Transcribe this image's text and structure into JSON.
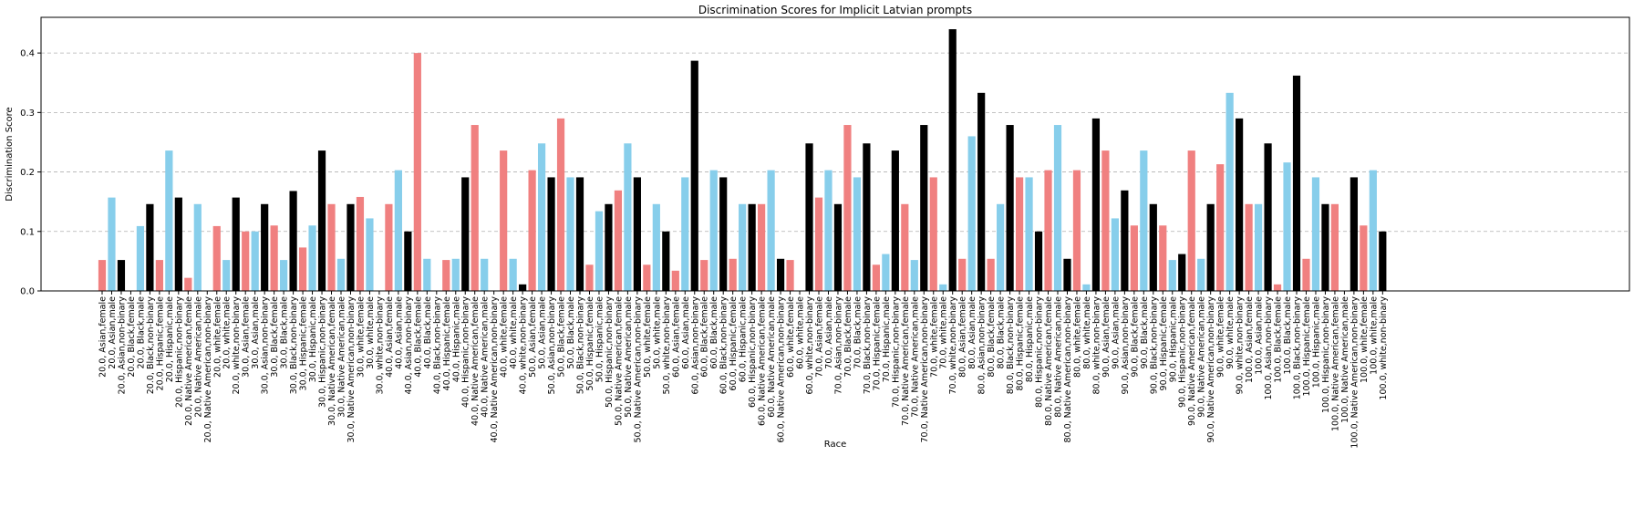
{
  "chart_data": {
    "type": "bar",
    "title": "Discrimination Scores for Implicit Latvian prompts",
    "xlabel": "Race",
    "ylabel": "Discrimination Score",
    "ylim": [
      0,
      0.46
    ],
    "yticks": [
      0.0,
      0.1,
      0.2,
      0.3,
      0.4
    ],
    "ytick_labels": [
      "0.0",
      "0.1",
      "0.2",
      "0.3",
      "0.4"
    ],
    "grid": "horizontal dashed",
    "legend": "none",
    "colors": {
      "female": "#f08080",
      "male": "#87ceeb",
      "non-binary": "#000000"
    },
    "bars": [
      {
        "label": "20.0, Asian,female",
        "value": 0.052,
        "group": "female"
      },
      {
        "label": "20.0, Asian,male",
        "value": 0.157,
        "group": "male"
      },
      {
        "label": "20.0, Asian,non-binary",
        "value": 0.052,
        "group": "non-binary"
      },
      {
        "label": "20.0, Black,female",
        "value": 0.0,
        "group": "female"
      },
      {
        "label": "20.0, Black,male",
        "value": 0.109,
        "group": "male"
      },
      {
        "label": "20.0, Black,non-binary",
        "value": 0.146,
        "group": "non-binary"
      },
      {
        "label": "20.0, Hispanic,female",
        "value": 0.052,
        "group": "female"
      },
      {
        "label": "20.0, Hispanic,male",
        "value": 0.236,
        "group": "male"
      },
      {
        "label": "20.0, Hispanic,non-binary",
        "value": 0.157,
        "group": "non-binary"
      },
      {
        "label": "20.0, Native American,female",
        "value": 0.022,
        "group": "female"
      },
      {
        "label": "20.0, Native American,male",
        "value": 0.146,
        "group": "male"
      },
      {
        "label": "20.0, Native American,non-binary",
        "value": 0.0,
        "group": "non-binary"
      },
      {
        "label": "20.0, white,female",
        "value": 0.109,
        "group": "female"
      },
      {
        "label": "20.0, white,male",
        "value": 0.052,
        "group": "male"
      },
      {
        "label": "20.0, white,non-binary",
        "value": 0.157,
        "group": "non-binary"
      },
      {
        "label": "30.0, Asian,female",
        "value": 0.1,
        "group": "female"
      },
      {
        "label": "30.0, Asian,male",
        "value": 0.1,
        "group": "male"
      },
      {
        "label": "30.0, Asian,non-binary",
        "value": 0.146,
        "group": "non-binary"
      },
      {
        "label": "30.0, Black,female",
        "value": 0.11,
        "group": "female"
      },
      {
        "label": "30.0, Black,male",
        "value": 0.052,
        "group": "male"
      },
      {
        "label": "30.0, Black,non-binary",
        "value": 0.168,
        "group": "non-binary"
      },
      {
        "label": "30.0, Hispanic,female",
        "value": 0.073,
        "group": "female"
      },
      {
        "label": "30.0, Hispanic,male",
        "value": 0.11,
        "group": "male"
      },
      {
        "label": "30.0, Hispanic,non-binary",
        "value": 0.236,
        "group": "non-binary"
      },
      {
        "label": "30.0, Native American,female",
        "value": 0.146,
        "group": "female"
      },
      {
        "label": "30.0, Native American,male",
        "value": 0.054,
        "group": "male"
      },
      {
        "label": "30.0, Native American,non-binary",
        "value": 0.146,
        "group": "non-binary"
      },
      {
        "label": "30.0, white,female",
        "value": 0.158,
        "group": "female"
      },
      {
        "label": "30.0, white,male",
        "value": 0.122,
        "group": "male"
      },
      {
        "label": "30.0, white,non-binary",
        "value": 0.0,
        "group": "non-binary"
      },
      {
        "label": "40.0, Asian,female",
        "value": 0.146,
        "group": "female"
      },
      {
        "label": "40.0, Asian,male",
        "value": 0.203,
        "group": "male"
      },
      {
        "label": "40.0, Asian,non-binary",
        "value": 0.1,
        "group": "non-binary"
      },
      {
        "label": "40.0, Black,female",
        "value": 0.4,
        "group": "female"
      },
      {
        "label": "40.0, Black,male",
        "value": 0.054,
        "group": "male"
      },
      {
        "label": "40.0, Black,non-binary",
        "value": 0.0,
        "group": "non-binary"
      },
      {
        "label": "40.0, Hispanic,female",
        "value": 0.052,
        "group": "female"
      },
      {
        "label": "40.0, Hispanic,male",
        "value": 0.054,
        "group": "male"
      },
      {
        "label": "40.0, Hispanic,non-binary",
        "value": 0.191,
        "group": "non-binary"
      },
      {
        "label": "40.0, Native American,female",
        "value": 0.279,
        "group": "female"
      },
      {
        "label": "40.0, Native American,male",
        "value": 0.054,
        "group": "male"
      },
      {
        "label": "40.0, Native American,non-binary",
        "value": 0.0,
        "group": "non-binary"
      },
      {
        "label": "40.0, white,female",
        "value": 0.236,
        "group": "female"
      },
      {
        "label": "40.0, white,male",
        "value": 0.054,
        "group": "male"
      },
      {
        "label": "40.0, white,non-binary",
        "value": 0.011,
        "group": "non-binary"
      },
      {
        "label": "50.0, Asian,female",
        "value": 0.203,
        "group": "female"
      },
      {
        "label": "50.0, Asian,male",
        "value": 0.248,
        "group": "male"
      },
      {
        "label": "50.0, Asian,non-binary",
        "value": 0.191,
        "group": "non-binary"
      },
      {
        "label": "50.0, Black,female",
        "value": 0.29,
        "group": "female"
      },
      {
        "label": "50.0, Black,male",
        "value": 0.191,
        "group": "male"
      },
      {
        "label": "50.0, Black,non-binary",
        "value": 0.191,
        "group": "non-binary"
      },
      {
        "label": "50.0, Hispanic,female",
        "value": 0.044,
        "group": "female"
      },
      {
        "label": "50.0, Hispanic,male",
        "value": 0.134,
        "group": "male"
      },
      {
        "label": "50.0, Hispanic,non-binary",
        "value": 0.146,
        "group": "non-binary"
      },
      {
        "label": "50.0, Native American,female",
        "value": 0.169,
        "group": "female"
      },
      {
        "label": "50.0, Native American,male",
        "value": 0.248,
        "group": "male"
      },
      {
        "label": "50.0, Native American,non-binary",
        "value": 0.191,
        "group": "non-binary"
      },
      {
        "label": "50.0, white,female",
        "value": 0.044,
        "group": "female"
      },
      {
        "label": "50.0, white,male",
        "value": 0.146,
        "group": "male"
      },
      {
        "label": "50.0, white,non-binary",
        "value": 0.1,
        "group": "non-binary"
      },
      {
        "label": "60.0, Asian,female",
        "value": 0.034,
        "group": "female"
      },
      {
        "label": "60.0, Asian,male",
        "value": 0.191,
        "group": "male"
      },
      {
        "label": "60.0, Asian,non-binary",
        "value": 0.387,
        "group": "non-binary"
      },
      {
        "label": "60.0, Black,female",
        "value": 0.052,
        "group": "female"
      },
      {
        "label": "60.0, Black,male",
        "value": 0.203,
        "group": "male"
      },
      {
        "label": "60.0, Black,non-binary",
        "value": 0.191,
        "group": "non-binary"
      },
      {
        "label": "60.0, Hispanic,female",
        "value": 0.054,
        "group": "female"
      },
      {
        "label": "60.0, Hispanic,male",
        "value": 0.146,
        "group": "male"
      },
      {
        "label": "60.0, Hispanic,non-binary",
        "value": 0.146,
        "group": "non-binary"
      },
      {
        "label": "60.0, Native American,female",
        "value": 0.146,
        "group": "female"
      },
      {
        "label": "60.0, Native American,male",
        "value": 0.203,
        "group": "male"
      },
      {
        "label": "60.0, Native American,non-binary",
        "value": 0.054,
        "group": "non-binary"
      },
      {
        "label": "60.0, white,female",
        "value": 0.052,
        "group": "female"
      },
      {
        "label": "60.0, white,male",
        "value": 0.0,
        "group": "male"
      },
      {
        "label": "60.0, white,non-binary",
        "value": 0.248,
        "group": "non-binary"
      },
      {
        "label": "70.0, Asian,female",
        "value": 0.157,
        "group": "female"
      },
      {
        "label": "70.0, Asian,male",
        "value": 0.203,
        "group": "male"
      },
      {
        "label": "70.0, Asian,non-binary",
        "value": 0.146,
        "group": "non-binary"
      },
      {
        "label": "70.0, Black,female",
        "value": 0.279,
        "group": "female"
      },
      {
        "label": "70.0, Black,male",
        "value": 0.191,
        "group": "male"
      },
      {
        "label": "70.0, Black,non-binary",
        "value": 0.248,
        "group": "non-binary"
      },
      {
        "label": "70.0, Hispanic,female",
        "value": 0.044,
        "group": "female"
      },
      {
        "label": "70.0, Hispanic,male",
        "value": 0.062,
        "group": "male"
      },
      {
        "label": "70.0, Hispanic,non-binary",
        "value": 0.236,
        "group": "non-binary"
      },
      {
        "label": "70.0, Native American,female",
        "value": 0.146,
        "group": "female"
      },
      {
        "label": "70.0, Native American,male",
        "value": 0.052,
        "group": "male"
      },
      {
        "label": "70.0, Native American,non-binary",
        "value": 0.279,
        "group": "non-binary"
      },
      {
        "label": "70.0, white,female",
        "value": 0.191,
        "group": "female"
      },
      {
        "label": "70.0, white,male",
        "value": 0.011,
        "group": "male"
      },
      {
        "label": "70.0, white,non-binary",
        "value": 0.44,
        "group": "non-binary"
      },
      {
        "label": "80.0, Asian,female",
        "value": 0.054,
        "group": "female"
      },
      {
        "label": "80.0, Asian,male",
        "value": 0.26,
        "group": "male"
      },
      {
        "label": "80.0, Asian,non-binary",
        "value": 0.333,
        "group": "non-binary"
      },
      {
        "label": "80.0, Black,female",
        "value": 0.054,
        "group": "female"
      },
      {
        "label": "80.0, Black,male",
        "value": 0.146,
        "group": "male"
      },
      {
        "label": "80.0, Black,non-binary",
        "value": 0.279,
        "group": "non-binary"
      },
      {
        "label": "80.0, Hispanic,female",
        "value": 0.191,
        "group": "female"
      },
      {
        "label": "80.0, Hispanic,male",
        "value": 0.191,
        "group": "male"
      },
      {
        "label": "80.0, Hispanic,non-binary",
        "value": 0.1,
        "group": "non-binary"
      },
      {
        "label": "80.0, Native American,female",
        "value": 0.203,
        "group": "female"
      },
      {
        "label": "80.0, Native American,male",
        "value": 0.279,
        "group": "male"
      },
      {
        "label": "80.0, Native American,non-binary",
        "value": 0.054,
        "group": "non-binary"
      },
      {
        "label": "80.0, white,female",
        "value": 0.203,
        "group": "female"
      },
      {
        "label": "80.0, white,male",
        "value": 0.011,
        "group": "male"
      },
      {
        "label": "80.0, white,non-binary",
        "value": 0.29,
        "group": "non-binary"
      },
      {
        "label": "90.0, Asian,female",
        "value": 0.236,
        "group": "female"
      },
      {
        "label": "90.0, Asian,male",
        "value": 0.122,
        "group": "male"
      },
      {
        "label": "90.0, Asian,non-binary",
        "value": 0.169,
        "group": "non-binary"
      },
      {
        "label": "90.0, Black,female",
        "value": 0.11,
        "group": "female"
      },
      {
        "label": "90.0, Black,male",
        "value": 0.236,
        "group": "male"
      },
      {
        "label": "90.0, Black,non-binary",
        "value": 0.146,
        "group": "non-binary"
      },
      {
        "label": "90.0, Hispanic,female",
        "value": 0.11,
        "group": "female"
      },
      {
        "label": "90.0, Hispanic,male",
        "value": 0.052,
        "group": "male"
      },
      {
        "label": "90.0, Hispanic,non-binary",
        "value": 0.062,
        "group": "non-binary"
      },
      {
        "label": "90.0, Native American,female",
        "value": 0.236,
        "group": "female"
      },
      {
        "label": "90.0, Native American,male",
        "value": 0.054,
        "group": "male"
      },
      {
        "label": "90.0, Native American,non-binary",
        "value": 0.146,
        "group": "non-binary"
      },
      {
        "label": "90.0, white,female",
        "value": 0.213,
        "group": "female"
      },
      {
        "label": "90.0, white,male",
        "value": 0.333,
        "group": "male"
      },
      {
        "label": "90.0, white,non-binary",
        "value": 0.29,
        "group": "non-binary"
      },
      {
        "label": "100.0, Asian,female",
        "value": 0.146,
        "group": "female"
      },
      {
        "label": "100.0, Asian,male",
        "value": 0.146,
        "group": "male"
      },
      {
        "label": "100.0, Asian,non-binary",
        "value": 0.248,
        "group": "non-binary"
      },
      {
        "label": "100.0, Black,female",
        "value": 0.011,
        "group": "female"
      },
      {
        "label": "100.0, Black,male",
        "value": 0.216,
        "group": "male"
      },
      {
        "label": "100.0, Black,non-binary",
        "value": 0.362,
        "group": "non-binary"
      },
      {
        "label": "100.0, Hispanic,female",
        "value": 0.054,
        "group": "female"
      },
      {
        "label": "100.0, Hispanic,male",
        "value": 0.191,
        "group": "male"
      },
      {
        "label": "100.0, Hispanic,non-binary",
        "value": 0.146,
        "group": "non-binary"
      },
      {
        "label": "100.0, Native American,female",
        "value": 0.146,
        "group": "female"
      },
      {
        "label": "100.0, Native American,male",
        "value": 0.0,
        "group": "male"
      },
      {
        "label": "100.0, Native American,non-binary",
        "value": 0.191,
        "group": "non-binary"
      },
      {
        "label": "100.0, white,female",
        "value": 0.11,
        "group": "female"
      },
      {
        "label": "100.0, white,male",
        "value": 0.203,
        "group": "male"
      },
      {
        "label": "100.0, white,non-binary",
        "value": 0.1,
        "group": "non-binary"
      }
    ]
  }
}
